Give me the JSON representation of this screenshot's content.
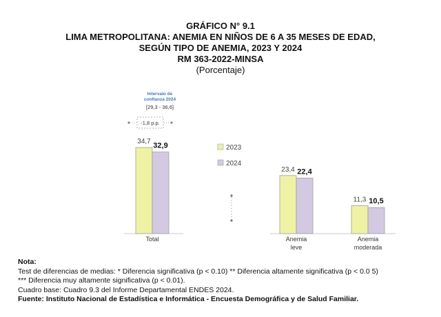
{
  "header": {
    "title": "GRÁFICO N° 9.1",
    "line1": "LIMA METROPOLITANA: ANEMIA EN NIÑOS DE 6 A 35 MESES DE EDAD,",
    "line2": "SEGÚN TIPO DE ANEMIA, 2023 Y 2024",
    "line3": "RM 363-2022-MINSA",
    "unit": "(Porcentaje)"
  },
  "chart_data": {
    "type": "bar",
    "categories": [
      [
        "Total"
      ],
      [
        "Anemia",
        "leve"
      ],
      [
        "Anemia",
        "moderada"
      ]
    ],
    "series": [
      {
        "name": "2023",
        "values": [
          34.7,
          23.4,
          11.3
        ],
        "labels": [
          "34,7",
          "23,4",
          "11,3"
        ],
        "color": "#eef2a2"
      },
      {
        "name": "2024",
        "values": [
          32.9,
          22.4,
          10.5
        ],
        "labels": [
          "32,9",
          "22,4",
          "10,5"
        ],
        "color": "#d4c9e3"
      }
    ],
    "legend_position": "center",
    "annotation": {
      "ci_title": [
        "Intervalo de",
        "confianza 2024"
      ],
      "ci_range": "[29,3 - 36,6]",
      "difference": "-1,8 p.p."
    },
    "colors": {
      "ci_text": "#3a78c2",
      "bar_edge": "#9aa0a6"
    }
  },
  "notes": {
    "heading": "Nota:",
    "line1": "Test de diferencias de medias: * Diferencia significativa (p < 0.10) ** Diferencia altamente significativa (p < 0.0 5)",
    "line2": "*** Diferencia muy altamente significativa (p < 0.01).",
    "line3": "Cuadro base: Cuadro 9.3 del Informe Departamental ENDES 2024.",
    "source": "Fuente: Instituto Nacional de Estadística e Informática - Encuesta Demográfica y de Salud Familiar."
  }
}
